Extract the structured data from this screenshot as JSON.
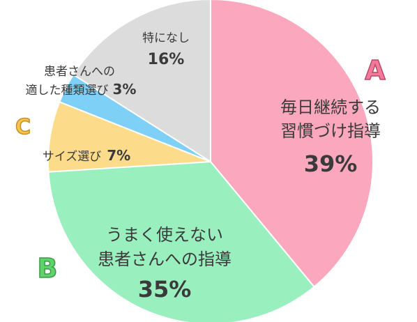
{
  "chart_data": {
    "type": "pie",
    "slices": [
      {
        "label_lines": [
          "毎日継続する",
          "習慣づけ指導"
        ],
        "value": 39,
        "percent_label": "39%",
        "color": "#fba8be",
        "badge": "A",
        "badge_color": "#f4799b"
      },
      {
        "label_lines": [
          "うまく使えない",
          "患者さんへの指導"
        ],
        "value": 35,
        "percent_label": "35%",
        "color": "#9aefbf",
        "badge": "B",
        "badge_color": "#5fd36b"
      },
      {
        "label_lines": [
          "サイズ選び"
        ],
        "value": 7,
        "percent_label": "7%",
        "color": "#fcdc8a",
        "badge": "C",
        "badge_color": "#f6c24b"
      },
      {
        "label_lines": [
          "患者さんへの",
          "適した種類選び"
        ],
        "value": 3,
        "percent_label": "3%",
        "color": "#7fd0f7"
      },
      {
        "label_lines": [
          "特になし"
        ],
        "value": 16,
        "percent_label": "16%",
        "color": "#dcdcdc"
      }
    ]
  }
}
